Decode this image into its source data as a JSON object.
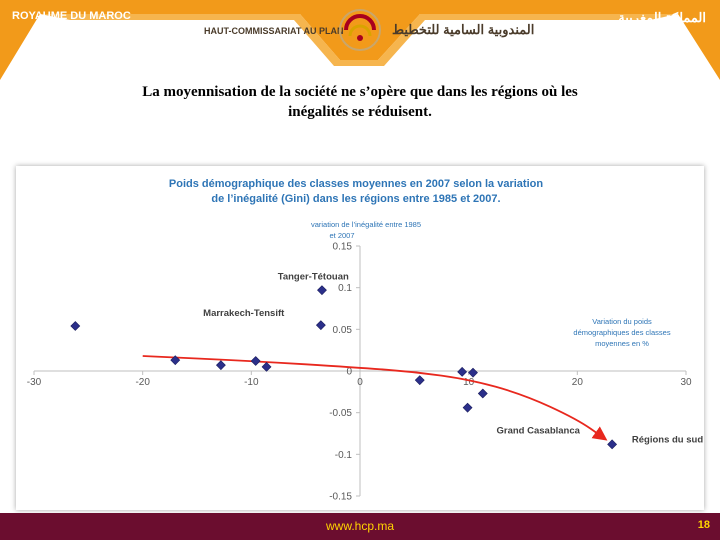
{
  "header": {
    "kingdom_fr": "ROYAUME DU MAROC",
    "kingdom_ar": "المملكة المغربية",
    "hcp_fr": "HAUT-COMMISSARIAT AU PLAN",
    "hcp_ar": "المندوبية السامية للتخطيط",
    "brand_color": "#f29a1a",
    "logo_color": "#a8001e"
  },
  "slide": {
    "title_line1": "La moyennisation de la société ne s’opère que dans les régions où les",
    "title_line2": "inégalités se réduisent."
  },
  "chart_data": {
    "type": "scatter",
    "title_line1": "Poids démographique des classes moyennes en 2007 selon la variation",
    "title_line2": "de l’inégalité  (Gini) dans les régions entre 1985 et 2007.",
    "ylabel_line1": "variation de l’inégalité entre 1985",
    "ylabel_line2": "et 2007",
    "xlabel_line1": "Variation du poids",
    "xlabel_line2": "démographiques des classes",
    "xlabel_line3": "moyennes en %",
    "xlim": [
      -30,
      30
    ],
    "ylim": [
      -0.15,
      0.15
    ],
    "x_ticks": [
      -30,
      -20,
      -10,
      0,
      10,
      20,
      30
    ],
    "x_tick_labels": [
      "-30",
      "-20",
      "-10",
      "0",
      "10",
      "20",
      "30"
    ],
    "y_ticks": [
      0.15,
      0.1,
      0.05,
      0,
      -0.05,
      -0.1,
      -0.15
    ],
    "y_tick_labels": [
      "0.15",
      "0.1",
      "0.05",
      "0",
      "-0.05",
      "-0.1",
      "-0.15"
    ],
    "points": [
      {
        "x": -26.2,
        "y": 0.054
      },
      {
        "x": -17.0,
        "y": 0.013
      },
      {
        "x": -12.8,
        "y": 0.007
      },
      {
        "x": -9.6,
        "y": 0.012
      },
      {
        "x": -8.6,
        "y": 0.005
      },
      {
        "x": -3.5,
        "y": 0.097
      },
      {
        "x": -3.6,
        "y": 0.055
      },
      {
        "x": 5.5,
        "y": -0.011
      },
      {
        "x": 9.4,
        "y": -0.001
      },
      {
        "x": 10.4,
        "y": -0.002
      },
      {
        "x": 11.3,
        "y": -0.027
      },
      {
        "x": 9.9,
        "y": -0.044
      },
      {
        "x": 23.2,
        "y": -0.088
      }
    ],
    "labels": [
      {
        "text": "Tanger-Tétouan",
        "x": -4.3,
        "y": 0.11,
        "anchor": "middle"
      },
      {
        "text": "Marrakech-Tensift",
        "x": -10.7,
        "y": 0.066,
        "anchor": "middle"
      },
      {
        "text": "Grand Casablanca",
        "x": 16.4,
        "y": -0.075,
        "anchor": "middle"
      },
      {
        "text": "Régions du sud",
        "x": 28.3,
        "y": -0.086,
        "anchor": "middle"
      }
    ],
    "trend": [
      {
        "x": -20,
        "y": 0.018
      },
      {
        "x": -10,
        "y": 0.012
      },
      {
        "x": 0,
        "y": 0.004
      },
      {
        "x": 5,
        "y": -0.001
      },
      {
        "x": 10,
        "y": -0.01
      },
      {
        "x": 15,
        "y": -0.028
      },
      {
        "x": 20,
        "y": -0.058
      },
      {
        "x": 22.5,
        "y": -0.081
      }
    ],
    "colors": {
      "marker": "#2b2f8a",
      "trend": "#e8281e",
      "title": "#2e75b6",
      "axis_text": "#595959",
      "axis": "#bfbfbf"
    }
  },
  "footer": {
    "url": "www.hcp.ma",
    "page": "18"
  }
}
